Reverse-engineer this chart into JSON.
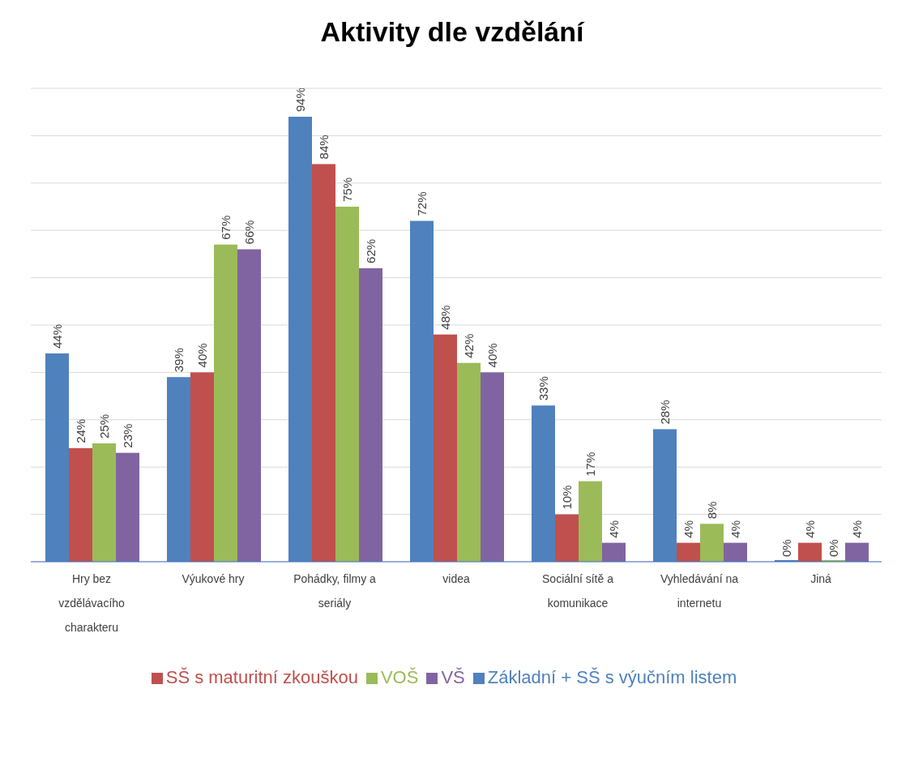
{
  "chart_data": {
    "type": "bar",
    "title": "Aktivity dle vzdělání",
    "categories": [
      "Hry bez vzdělávacího charakteru",
      "Výukové hry",
      "Pohádky, filmy a seriály",
      "videa",
      "Sociální sítě a komunikace",
      "Vyhledávání na internetu",
      "Jiná"
    ],
    "series": [
      {
        "name": "Základní + SŠ s výučním listem",
        "color": "#4f81bd",
        "values": [
          44,
          39,
          94,
          72,
          33,
          28,
          0
        ],
        "value_labels": [
          "44%",
          "39%",
          "94%",
          "72%",
          "33%",
          "28%",
          "0%"
        ]
      },
      {
        "name": "SŠ s maturitní zkouškou",
        "color": "#c0504d",
        "values": [
          24,
          40,
          84,
          48,
          10,
          4,
          4
        ],
        "value_labels": [
          "24%",
          "40%",
          "84%",
          "48%",
          "10%",
          "4%",
          "4%"
        ]
      },
      {
        "name": "VOŠ",
        "color": "#9bbb59",
        "values": [
          25,
          67,
          75,
          42,
          17,
          8,
          0
        ],
        "value_labels": [
          "25%",
          "67%",
          "75%",
          "42%",
          "17%",
          "8%",
          "0%"
        ]
      },
      {
        "name": "VŠ",
        "color": "#8064a2",
        "values": [
          23,
          66,
          62,
          40,
          4,
          4,
          4
        ],
        "value_labels": [
          "23%",
          "66%",
          "62%",
          "40%",
          "4%",
          "4%",
          "4%"
        ]
      }
    ],
    "ylim": [
      0,
      100
    ],
    "tick_labels": "x",
    "grid": "y",
    "legend": "bottom"
  }
}
